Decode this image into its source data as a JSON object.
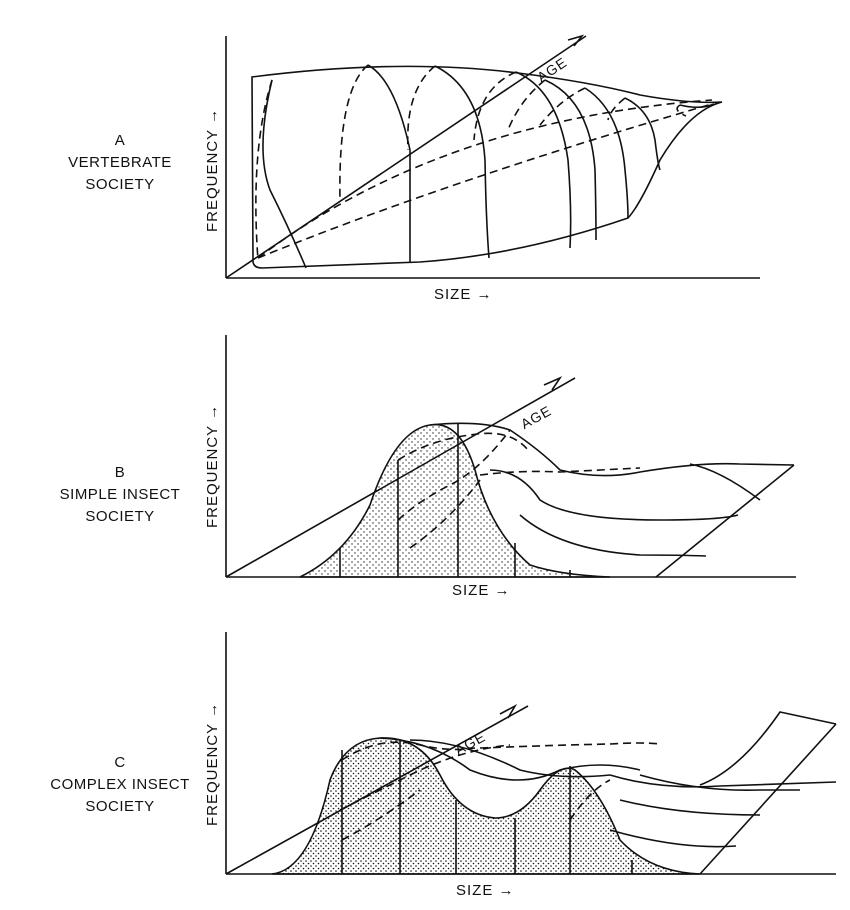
{
  "panels": [
    {
      "letter": "A",
      "title_line1": "VERTEBRATE",
      "title_line2": "SOCIETY",
      "y_label": "FREQUENCY",
      "x_label": "SIZE",
      "depth_label": "AGE"
    },
    {
      "letter": "B",
      "title_line1": "SIMPLE INSECT",
      "title_line2": "SOCIETY",
      "y_label": "FREQUENCY",
      "x_label": "SIZE",
      "depth_label": "AGE"
    },
    {
      "letter": "C",
      "title_line1": "COMPLEX INSECT",
      "title_line2": "SOCIETY",
      "y_label": "FREQUENCY",
      "x_label": "SIZE",
      "depth_label": "AGE"
    }
  ],
  "arrow_glyph": "→",
  "up_arrow_glyph": "↑",
  "stipple_color": "#222222",
  "line_color": "#111111"
}
